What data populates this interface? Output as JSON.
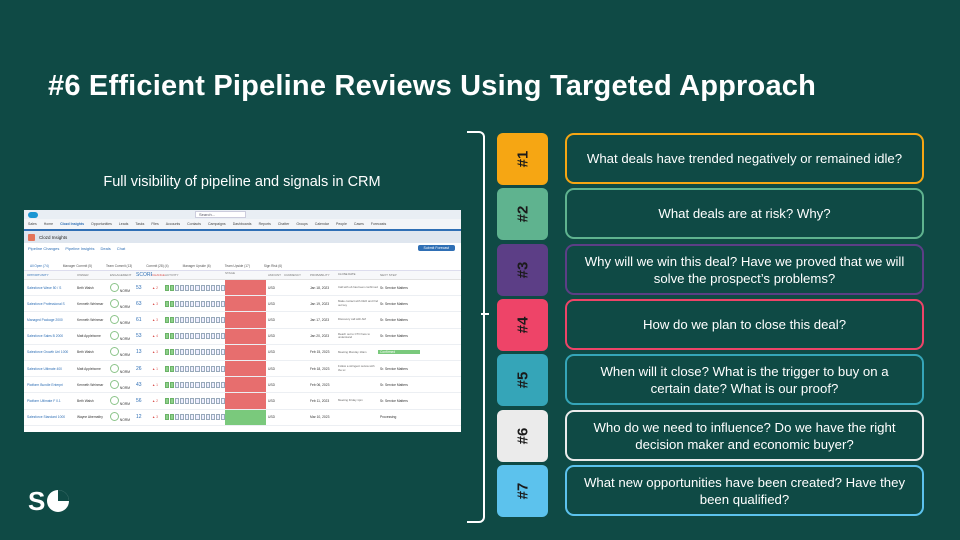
{
  "title": "#6 Efficient Pipeline Reviews Using Targeted Approach",
  "subtitle": "Full visibility of pipeline and signals in CRM",
  "crm": {
    "search": "Search...",
    "nav_tabs": [
      "Sales",
      "Home",
      "Clozd Insights",
      "Opportunities",
      "Leads",
      "Tasks",
      "Files",
      "Accounts",
      "Contacts",
      "Campaigns",
      "Dashboards",
      "Reports",
      "Chatter",
      "Groups",
      "Calendar",
      "People",
      "Cases",
      "Forecasts"
    ],
    "app_title": "Clozd Insights",
    "sub_links": [
      "Pipeline Changes",
      "Pipeline Insights",
      "Deals",
      "Chat"
    ],
    "submit_button": "Submit Forecast",
    "tabs": [
      "All Open (74)",
      "Manager Commit (5)",
      "Team Commit (13)",
      "Commit (28) (4)",
      "Manager Upside (6)",
      "Team Upside (17)",
      "Sign Risk (6)"
    ],
    "columns": [
      "OPPORTUNITY",
      "OWNER",
      "ENGAGEMENT",
      "SCORE",
      "CHANGE",
      "ACTIVITY",
      "STAGE",
      "AMOUNT",
      "CURRENCY",
      "PROBABILITY",
      "CLOSE DATE",
      "NEXT STEP",
      "FLAG"
    ]
  },
  "crm_rows": [
    {
      "name": "Salesforce Wave 50 / S",
      "owner": "Beth Walsh",
      "eng": "NORM",
      "score": "53",
      "chg": "▲ 2",
      "stage": "red",
      "amount": "USD",
      "close": "Jan 18, 2023",
      "next": "Call with eb has been confirmed",
      "flag": "Sr. Service Matters",
      "flagfill": false
    },
    {
      "name": "Salesforce Professional S",
      "owner": "Kenneth Weinmar",
      "eng": "NORM",
      "score": "63",
      "chg": "▲ 3",
      "stage": "red",
      "amount": "USD",
      "close": "Jan 19, 2023",
      "next": "Make contact with CEO and find out key",
      "flag": "Sr. Service Matters",
      "flagfill": false
    },
    {
      "name": "Managed Package 2000",
      "owner": "Kenneth Weinmar",
      "eng": "NORM",
      "score": "61",
      "chg": "▲ 3",
      "stage": "red",
      "amount": "USD",
      "close": "Jan 17, 2023",
      "next": "Discovery call with AM",
      "flag": "Sr. Service Matters",
      "flagfill": false
    },
    {
      "name": "Salesforce Sales B 2000",
      "owner": "Matt Applebome",
      "eng": "NORM",
      "score": "53",
      "chg": "▲ 4",
      "stage": "red",
      "amount": "USD",
      "close": "Jan 20, 2023",
      "next": "Reach out to CTO here to understand",
      "flag": "Sr. Service Matters",
      "flagfill": false
    },
    {
      "name": "Salesforce Growth Unl 1000",
      "owner": "Beth Walsh",
      "eng": "NORM",
      "score": "13",
      "chg": "▲ 3",
      "stage": "red",
      "amount": "USD",
      "close": "Feb 15, 2023",
      "next": "Meeting Monday 10am",
      "flag": "Confirmed",
      "flagfill": true
    },
    {
      "name": "Salesforce Ultimate 400",
      "owner": "Matt Applebome",
      "eng": "NORM",
      "score": "26",
      "chg": "▲ 1",
      "stage": "red",
      "amount": "USD",
      "close": "Feb 18, 2023",
      "next": "Follow a stringent review with the sc",
      "flag": "Sr. Service Matters",
      "flagfill": false
    },
    {
      "name": "Platform Bundle Enterpri",
      "owner": "Kenneth Weinmar",
      "eng": "NORM",
      "score": "43",
      "chg": "▲ 1",
      "stage": "red",
      "amount": "USD",
      "close": "Feb 06, 2023",
      "next": "",
      "flag": "Sr. Service Matters",
      "flagfill": false
    },
    {
      "name": "Platform Ultimate F 0.1",
      "owner": "Beth Walsh",
      "eng": "NORM",
      "score": "56",
      "chg": "▲ 2",
      "stage": "red",
      "amount": "USD",
      "close": "Feb 11, 2023",
      "next": "Meeting Friday 1pm",
      "flag": "Sr. Service Matters",
      "flagfill": false
    },
    {
      "name": "Salesforce Standard 1000",
      "owner": "Wayne Abernathy",
      "eng": "NORM",
      "score": "12",
      "chg": "▲ 3",
      "stage": "grn",
      "amount": "USD",
      "close": "Mar 10, 2023",
      "next": "",
      "flag": "Processing",
      "flagfill": false
    }
  ],
  "badges": [
    {
      "label": "#1",
      "color": "#f6a613"
    },
    {
      "label": "#2",
      "color": "#5fb38f"
    },
    {
      "label": "#3",
      "color": "#5c3e86"
    },
    {
      "label": "#4",
      "color": "#ee4468"
    },
    {
      "label": "#5",
      "color": "#35a5b8"
    },
    {
      "label": "#6",
      "color": "#ebebeb"
    },
    {
      "label": "#7",
      "color": "#5cc2ed"
    }
  ],
  "questions": [
    "What deals have trended negatively or remained idle?",
    "What deals are at risk? Why?",
    "Why will we win this deal? Have we proved that we will solve the prospect’s problems?",
    "How do we plan to close this deal?",
    "When will it close? What is the trigger to buy on a certain date? What is our proof?",
    "Who do we need to influence? Do we have the right decision maker and economic buyer?",
    "What new opportunities have been created? Have they been qualified?"
  ],
  "logo_text": "S"
}
